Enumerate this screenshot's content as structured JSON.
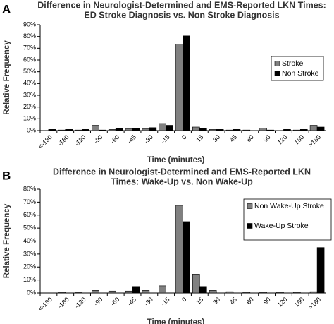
{
  "chart_data": [
    {
      "type": "bar",
      "panel": "A",
      "title": [
        "Difference in Neurologist-Determined and EMS-Reported LKN Times:",
        "ED Stroke Diagnosis vs. Non Stroke Diagnosis"
      ],
      "x_label": "Time (minutes)",
      "y_label": "Relative Frequency",
      "categories": [
        "<-180",
        "-180",
        "-120",
        "-90",
        "-60",
        "-45",
        "-30",
        "-15",
        "0",
        "15",
        "30",
        "45",
        "60",
        "90",
        "120",
        "180",
        ">180"
      ],
      "series": [
        {
          "name": "Stroke",
          "color": "#808080",
          "values": [
            0,
            0.5,
            0.5,
            4.5,
            1,
            1.5,
            1.5,
            6,
            73.5,
            3,
            1,
            0.5,
            0.5,
            2,
            0,
            0.5,
            4.5
          ]
        },
        {
          "name": "Non Stroke",
          "color": "#000000",
          "values": [
            1,
            1,
            1,
            0.5,
            2,
            2,
            2.5,
            4.5,
            80.5,
            2,
            1,
            1,
            0,
            0.5,
            1,
            1,
            3
          ]
        }
      ],
      "ylim": [
        0,
        90
      ],
      "yticks": [
        {
          "value": 0,
          "label": "0%"
        },
        {
          "value": 10,
          "label": "10%"
        },
        {
          "value": 20,
          "label": "20%"
        },
        {
          "value": 30,
          "label": "30%"
        },
        {
          "value": 40,
          "label": "40%"
        },
        {
          "value": 50,
          "label": "50%"
        },
        {
          "value": 60,
          "label": "60%"
        },
        {
          "value": 70,
          "label": "70%"
        },
        {
          "value": 80,
          "label": "80%"
        },
        {
          "value": 90,
          "label": "90%"
        }
      ],
      "legend": "right"
    },
    {
      "type": "bar",
      "panel": "B",
      "title": [
        "Difference in Neurologist-Determined and EMS-Reported LKN",
        "Times:  Wake-Up vs. Non Wake-Up"
      ],
      "x_label": "Time (minutes)",
      "y_label": "Relative Frequency",
      "categories": [
        "<-180",
        "-180",
        "-120",
        "-90",
        "-60",
        "-45",
        "-30",
        "-15",
        "0",
        "15",
        "30",
        "45",
        "60",
        "90",
        "120",
        "180",
        ">180"
      ],
      "series": [
        {
          "name": "Non Wake-Up Stroke",
          "color": "#808080",
          "values": [
            0,
            0.5,
            0.5,
            2,
            1.5,
            1.5,
            2,
            5.5,
            67.5,
            14.5,
            2,
            1,
            0.5,
            0.5,
            0.5,
            0.5,
            1
          ]
        },
        {
          "name": "Wake-Up Stroke",
          "color": "#000000",
          "values": [
            0,
            0,
            0,
            0,
            0,
            5,
            0,
            0,
            55,
            5,
            0,
            0,
            0,
            0,
            0,
            0,
            35
          ]
        }
      ],
      "ylim": [
        0,
        80
      ],
      "yticks": [
        {
          "value": 0,
          "label": "0%"
        },
        {
          "value": 10,
          "label": "10%"
        },
        {
          "value": 20,
          "label": "20%"
        },
        {
          "value": 30,
          "label": "30%"
        },
        {
          "value": 40,
          "label": "40%"
        },
        {
          "value": 50,
          "label": "50%"
        },
        {
          "value": 60,
          "label": "60%"
        },
        {
          "value": 70,
          "label": "70%"
        },
        {
          "value": 80,
          "label": "80%"
        }
      ],
      "legend": "right"
    }
  ]
}
